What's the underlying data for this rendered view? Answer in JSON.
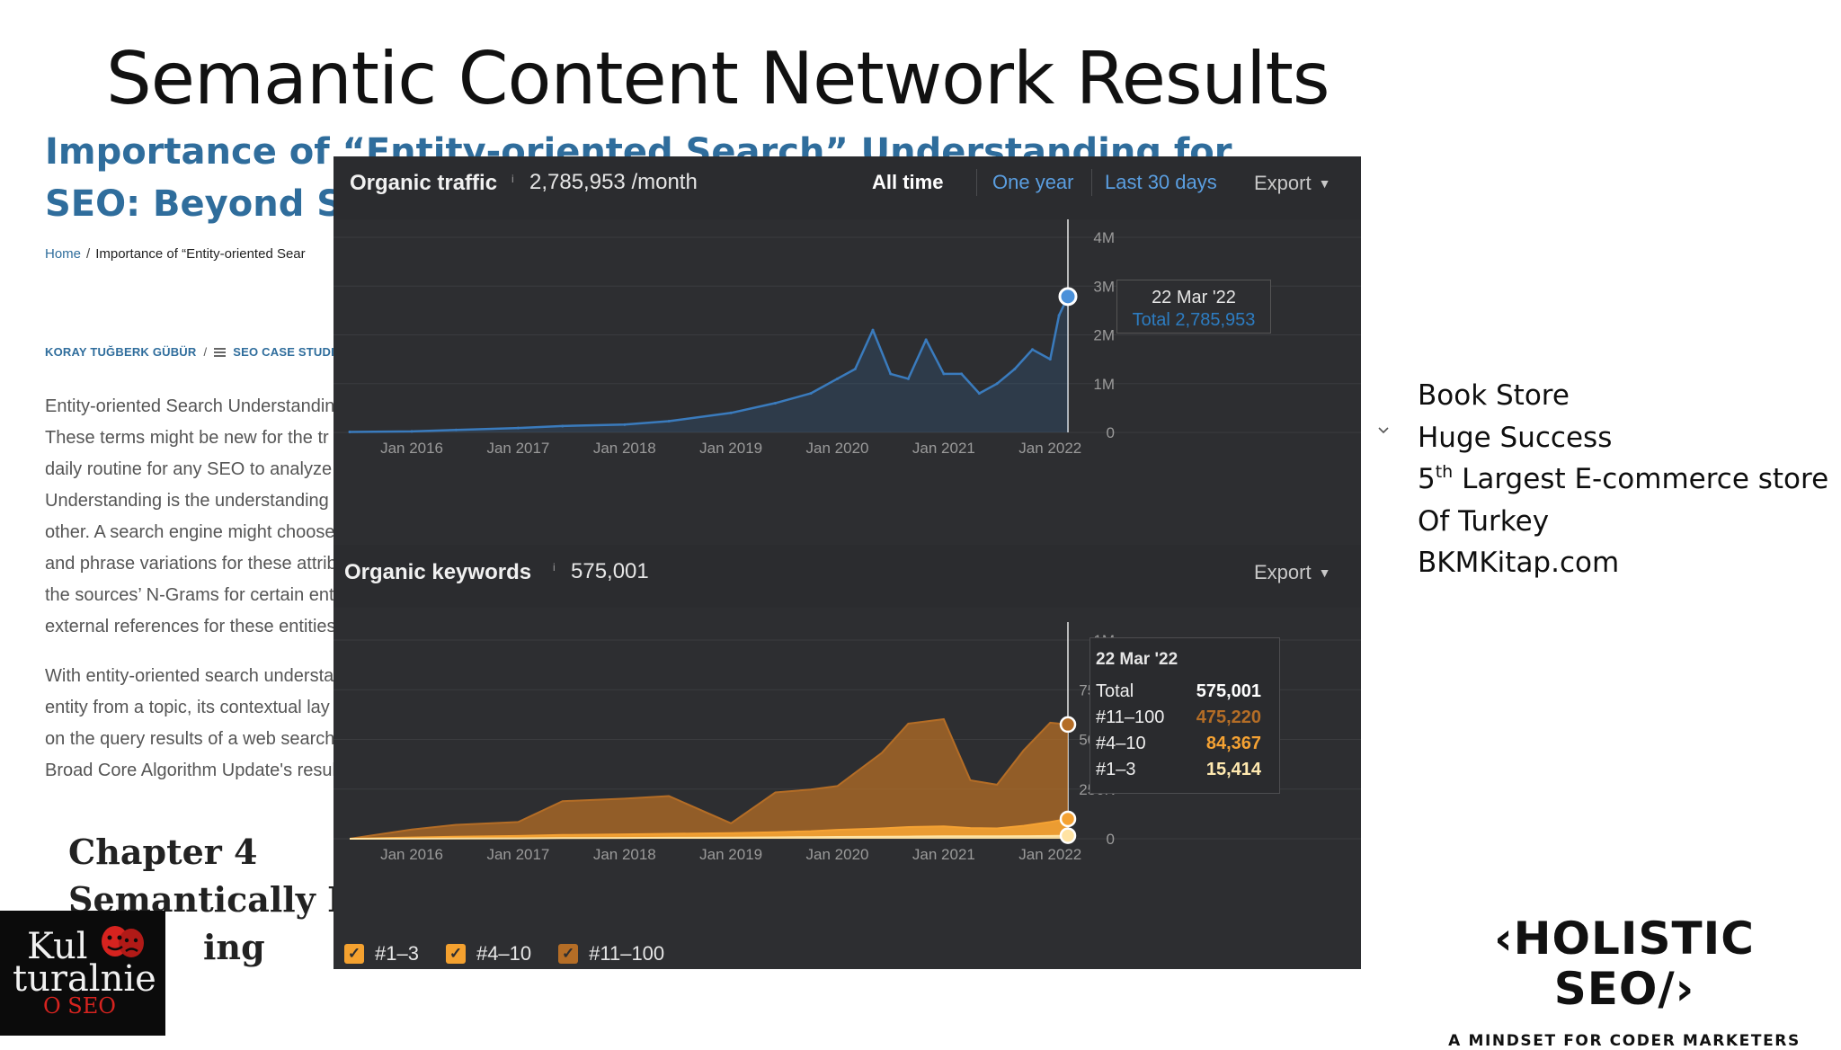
{
  "slide": {
    "title": "Semantic Content Network Results",
    "side_lines": [
      "Book Store",
      "Huge Success",
      "5",
      "th",
      " Largest E-commerce store",
      "Of Turkey",
      "BKMKitap.com"
    ]
  },
  "article": {
    "heading": "Importance of “Entity-oriented Search” Understanding for SEO: Beyond Strings",
    "breadcrumb_home": "Home",
    "breadcrumb_current": "Importance of “Entity-oriented Sear",
    "author": "KORAY TUĞBERK GÜBÜR",
    "category": "SEO CASE STUDI",
    "para1": [
      "Entity-oriented Search Understandin",
      "These terms might be new for the tr",
      "daily routine for any SEO to analyze t",
      "Understanding is the understanding",
      "other. A search engine might choose",
      "and phrase variations for these attrib",
      "the sources’ N-Grams for certain ent",
      "external references for these entities"
    ],
    "para2": [
      "With entity-oriented search understa",
      "entity from a topic, its contextual lay",
      "on the query results of a web search",
      "Broad Core Algorithm Update's resul"
    ],
    "chapter": [
      "Chapter 4",
      "Semantically E",
      "ing"
    ]
  },
  "logo_kul": {
    "line1": "Kul",
    "line2": "turalnie",
    "line3": "O SEO"
  },
  "holistic": {
    "brand": "‹HOLISTIC SEO/›",
    "tagline": "A MINDSET FOR CODER MARKETERS"
  },
  "traffic": {
    "label": "Organic traffic",
    "info": "i",
    "value": "2,785,953 /month",
    "range_all": "All time",
    "range_year": "One year",
    "range_30": "Last 30 days",
    "export": "Export",
    "tooltip_date": "22 Mar '22",
    "tooltip_total": "Total 2,785,953"
  },
  "keywords": {
    "label": "Organic keywords",
    "info": "i",
    "value": "575,001",
    "export": "Export",
    "tooltip": {
      "date": "22 Mar '22",
      "rows": [
        {
          "label": "Total",
          "value": "575,001",
          "color": "#ffffff"
        },
        {
          "label": "#11–100",
          "value": "475,220",
          "color": "#b46d26"
        },
        {
          "label": "#4–10",
          "value": "84,367",
          "color": "#f5a233"
        },
        {
          "label": "#1–3",
          "value": "15,414",
          "color": "#ffe9b0"
        }
      ]
    },
    "legend": [
      "#1–3",
      "#4–10",
      "#11–100"
    ]
  },
  "chart_data": [
    {
      "type": "line",
      "title": "Organic traffic",
      "x_tick_labels": [
        "Jan 2016",
        "Jan 2017",
        "Jan 2018",
        "Jan 2019",
        "Jan 2020",
        "Jan 2021",
        "Jan 2022"
      ],
      "y_tick_labels": [
        "0",
        "1M",
        "2M",
        "3M",
        "4M"
      ],
      "ylim": [
        0,
        4000000
      ],
      "x": [
        "2015-06",
        "2016-01",
        "2016-06",
        "2017-01",
        "2017-06",
        "2018-01",
        "2018-06",
        "2019-01",
        "2019-06",
        "2019-10",
        "2020-01",
        "2020-03",
        "2020-05",
        "2020-07",
        "2020-09",
        "2020-11",
        "2021-01",
        "2021-03",
        "2021-05",
        "2021-07",
        "2021-09",
        "2021-11",
        "2022-01",
        "2022-02",
        "2022-03"
      ],
      "series": [
        {
          "values": [
            10000,
            20000,
            50000,
            90000,
            130000,
            160000,
            230000,
            400000,
            600000,
            800000,
            1100000,
            1300000,
            2100000,
            1200000,
            1100000,
            1900000,
            1200000,
            1200000,
            800000,
            1000000,
            1300000,
            1700000,
            1500000,
            2400000,
            2785953
          ],
          "color": "#3a7bbd"
        }
      ]
    },
    {
      "type": "area",
      "title": "Organic keywords",
      "x_tick_labels": [
        "Jan 2016",
        "Jan 2017",
        "Jan 2018",
        "Jan 2019",
        "Jan 2020",
        "Jan 2021",
        "Jan 2022"
      ],
      "y_tick_labels": [
        "0",
        "250K",
        "500K",
        "750K",
        "1M"
      ],
      "ylim": [
        0,
        1000000
      ],
      "x": [
        "2015-06",
        "2016-01",
        "2016-06",
        "2017-01",
        "2017-06",
        "2018-01",
        "2018-06",
        "2019-01",
        "2019-06",
        "2019-10",
        "2020-01",
        "2020-06",
        "2020-09",
        "2021-01",
        "2021-04",
        "2021-07",
        "2021-10",
        "2022-01",
        "2022-03"
      ],
      "series": [
        {
          "name": "#1–3",
          "values": [
            0,
            500,
            1000,
            2000,
            3000,
            4000,
            5000,
            6000,
            7000,
            8000,
            9000,
            10000,
            11000,
            12000,
            12000,
            12000,
            13000,
            14000,
            15414
          ],
          "color": "#ffe3a3"
        },
        {
          "name": "#4–10",
          "values": [
            0,
            6000,
            9000,
            12000,
            16000,
            18000,
            20000,
            22000,
            26000,
            30000,
            36000,
            42000,
            48000,
            50000,
            42000,
            40000,
            52000,
            70000,
            84367
          ],
          "color": "#f5a233"
        },
        {
          "name": "#11–100",
          "values": [
            0,
            40000,
            60000,
            70000,
            170000,
            180000,
            190000,
            50000,
            200000,
            210000,
            220000,
            380000,
            520000,
            540000,
            240000,
            220000,
            380000,
            500000,
            475220
          ],
          "color": "#b46d26"
        }
      ]
    }
  ]
}
